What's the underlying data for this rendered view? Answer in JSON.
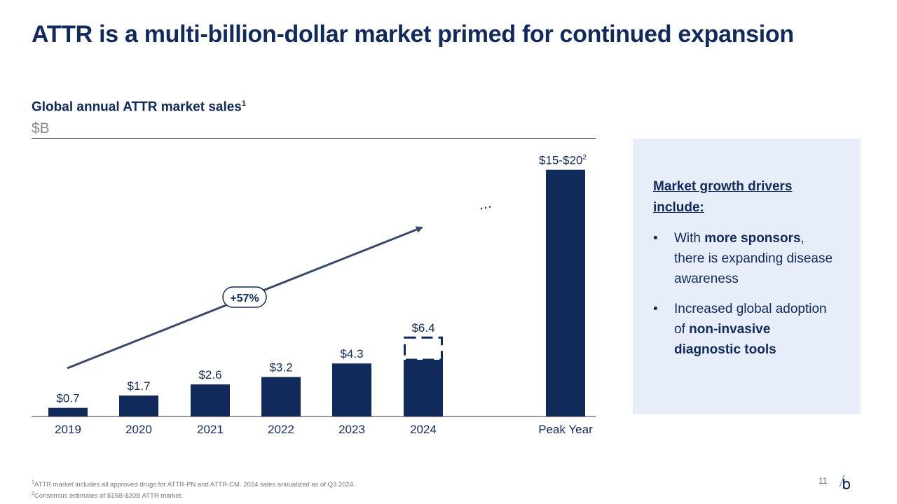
{
  "slide": {
    "title": "ATTR is a multi-billion-dollar market primed for continued expansion",
    "subtitle": "Global annual ATTR market sales",
    "subtitle_footnote": "1",
    "unit": "$B",
    "page_number": "11"
  },
  "chart_data": {
    "type": "bar",
    "title": "Global annual ATTR market sales",
    "ylabel": "$B",
    "categories": [
      "2019",
      "2020",
      "2021",
      "2022",
      "2023",
      "2024",
      "Peak Year"
    ],
    "values": [
      0.7,
      1.7,
      2.6,
      3.2,
      4.3,
      6.4,
      20
    ],
    "data_labels": [
      "$0.7",
      "$1.7",
      "$2.6",
      "$3.2",
      "$4.3",
      "$6.4",
      "$15-$20"
    ],
    "peak_label_footnote": "2",
    "annualized_base_2024": 4.6,
    "ylim": [
      0,
      21
    ],
    "growth_annotation": "+57%",
    "ellipsis": "...",
    "colors": {
      "bar": "#102a5c",
      "arrow": "#3a4a66"
    }
  },
  "panel": {
    "heading": "Market growth drivers include:",
    "bullet_glyph": "•",
    "bullets": [
      {
        "before": "With ",
        "bold": "more sponsors",
        "after": ", there is expanding disease awareness"
      },
      {
        "before": "Increased global adoption of ",
        "bold": "non-invasive diagnostic tools",
        "after": ""
      }
    ]
  },
  "footnotes": [
    {
      "mark": "1",
      "text": "ATTR market includes all approved drugs for ATTR-PN and ATTR-CM. 2024 sales annualized as of Q3 2024."
    },
    {
      "mark": "2",
      "text": "Consensus estimates of $15B-$20B ATTR market."
    }
  ]
}
